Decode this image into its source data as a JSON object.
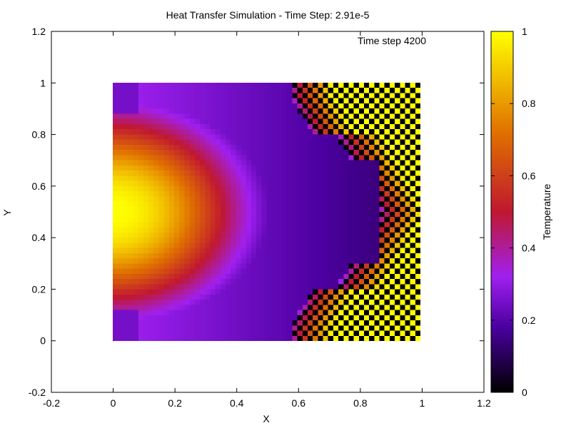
{
  "chart_data": {
    "type": "heatmap",
    "title": "Heat Transfer Simulation - Time Step: 2.91e-5",
    "annotation": "Time step 4200",
    "xlabel": "X",
    "ylabel": "Y",
    "xlim": [
      -0.2,
      1.2
    ],
    "ylim": [
      -0.2,
      1.2
    ],
    "x_ticks": [
      -0.2,
      0,
      0.2,
      0.4,
      0.6,
      0.8,
      1,
      1.2
    ],
    "y_ticks": [
      -0.2,
      0,
      0.2,
      0.4,
      0.6,
      0.8,
      1,
      1.2
    ],
    "x_tick_labels": [
      "-0.2",
      "0",
      "0.2",
      "0.4",
      "0.6",
      "0.8",
      "1",
      "1.2"
    ],
    "y_tick_labels": [
      "-0.2",
      "0",
      "0.2",
      "0.4",
      "0.6",
      "0.8",
      "1",
      "1.2"
    ],
    "data_extent": {
      "x": [
        0,
        1
      ],
      "y": [
        0,
        1
      ]
    },
    "grid": false,
    "colorbar": {
      "label": "Temperature",
      "range": [
        0,
        1
      ],
      "ticks": [
        0,
        0.2,
        0.4,
        0.6,
        0.8,
        1
      ],
      "tick_labels": [
        "0",
        "0.2",
        "0.4",
        "0.6",
        "0.8",
        "1"
      ],
      "palette": "black-purple-red-orange-yellow",
      "colors": [
        "#000000",
        "#4b00a0",
        "#a020f0",
        "#c01830",
        "#e07000",
        "#ffff00"
      ]
    },
    "field_description": {
      "hot_source_center": [
        0,
        0.5
      ],
      "hot_source_peak": 1.0,
      "unstable_region_x_start": 0.68
    }
  }
}
